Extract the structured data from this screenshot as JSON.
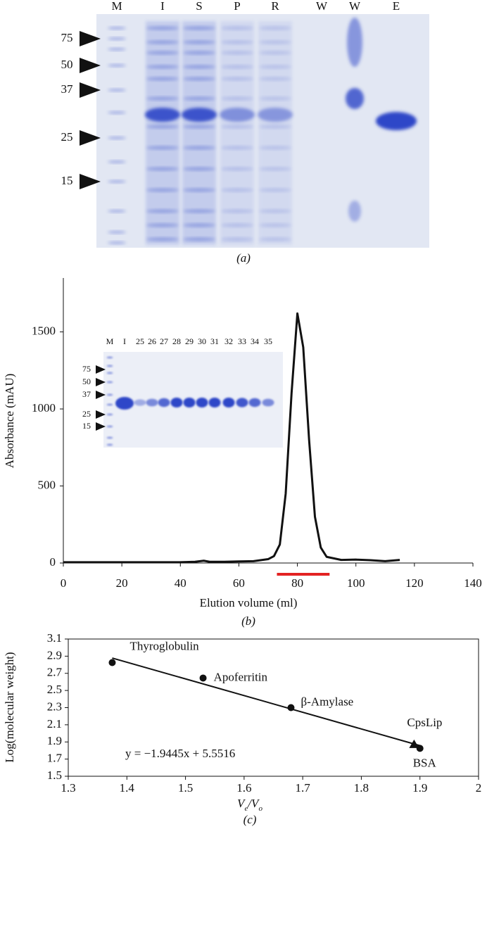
{
  "gel": {
    "lanes": [
      "M",
      "I",
      "S",
      "P",
      "R",
      "W",
      "W",
      "E"
    ],
    "markers": [
      "75",
      "50",
      "37",
      "25",
      "15"
    ],
    "caption": "(a)"
  },
  "chart_data": [
    {
      "type": "line",
      "caption": "(b)",
      "x_label": "Elution volume (ml)",
      "y_label": "Absorbance (mAU)",
      "x": [
        0,
        10,
        20,
        30,
        40,
        45,
        48,
        50,
        55,
        60,
        65,
        70,
        72,
        74,
        76,
        78,
        80,
        82,
        84,
        86,
        88,
        90,
        95,
        100,
        105,
        110,
        115
      ],
      "values": [
        5,
        5,
        5,
        5,
        5,
        8,
        15,
        8,
        8,
        10,
        12,
        25,
        45,
        120,
        450,
        1100,
        1620,
        1400,
        800,
        300,
        100,
        40,
        20,
        22,
        18,
        12,
        20
      ],
      "color": "#111111",
      "xlim": [
        0,
        140
      ],
      "xticks": [
        0,
        20,
        40,
        60,
        80,
        100,
        120,
        140
      ],
      "ylim": [
        0,
        1850
      ],
      "yticks": [
        0,
        500,
        1000,
        1500
      ],
      "highlight_x": [
        73,
        91
      ],
      "highlight_color": "#e32222",
      "inset_lanes": [
        "M",
        "I",
        "25",
        "26",
        "27",
        "28",
        "29",
        "30",
        "31",
        "32",
        "33",
        "34",
        "35"
      ],
      "inset_markers": [
        "75",
        "50",
        "37",
        "25",
        "15"
      ]
    },
    {
      "type": "scatter",
      "caption": "(c)",
      "x_label_parts": [
        "V",
        "e",
        "/V",
        "o"
      ],
      "y_label": "Log(molecular weight)",
      "x": [
        1.375,
        1.53,
        1.68,
        1.9,
        1.89
      ],
      "values": [
        2.825,
        2.645,
        2.3,
        1.825,
        1.87
      ],
      "labels": [
        "Thyroglobulin",
        "Apoferritin",
        "β-Amylase",
        "BSA",
        "CpsLip"
      ],
      "markers": [
        "circle",
        "circle",
        "circle",
        "circle",
        "triangle"
      ],
      "color": "#111111",
      "fit": {
        "slope": -1.9445,
        "intercept": 5.5516,
        "x_range": [
          1.375,
          1.9
        ]
      },
      "equation": "y = −1.9445x + 5.5516",
      "xlim": [
        1.3,
        2
      ],
      "xticks": [
        1.3,
        1.4,
        1.5,
        1.6,
        1.7,
        1.8,
        1.9,
        2
      ],
      "ylim": [
        1.5,
        3.1
      ],
      "yticks": [
        1.5,
        1.7,
        1.9,
        2.1,
        2.3,
        2.5,
        2.7,
        2.9,
        3.1
      ]
    }
  ]
}
